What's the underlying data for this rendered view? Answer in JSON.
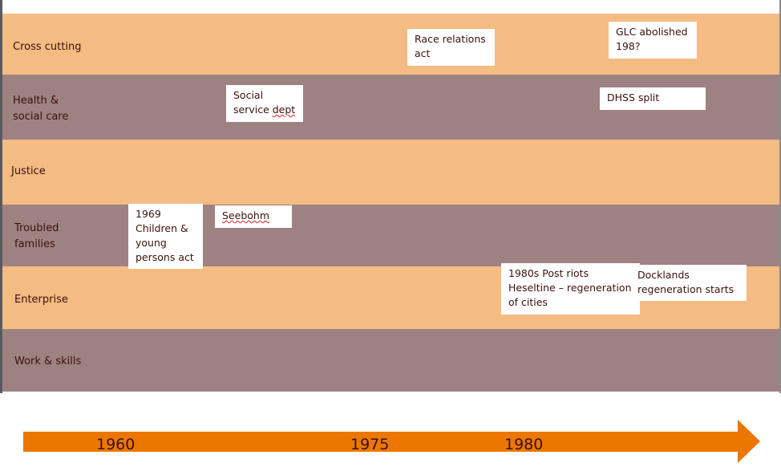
{
  "rows": [
    {
      "label": "Cross cutting"
    },
    {
      "label": "Health &\nsocial care"
    },
    {
      "label": "Justice"
    },
    {
      "label": "Troubled\nfamilies"
    },
    {
      "label": "Enterprise"
    },
    {
      "label": "Work & skills"
    }
  ],
  "events": {
    "race_relations": "Race relations\nact",
    "glc": "GLC abolished\n198?",
    "social_service_1": "Social\nservice ",
    "social_service_2": "dept",
    "dhss": "DHSS split",
    "children_act": "1969\nChildren &\nyoung\npersons act",
    "seebohm": "Seebohm",
    "post_riots": "1980s Post riots\nHeseltine – regeneration\nof cities",
    "docklands": "Docklands\nregeneration starts"
  },
  "timeline": {
    "years": [
      "1960",
      "1975",
      "1980"
    ],
    "arrow_color": "#ec7700"
  },
  "colors": {
    "band_light": "#f4bb82",
    "band_dark": "#9e8282",
    "text": "#3b1010"
  }
}
